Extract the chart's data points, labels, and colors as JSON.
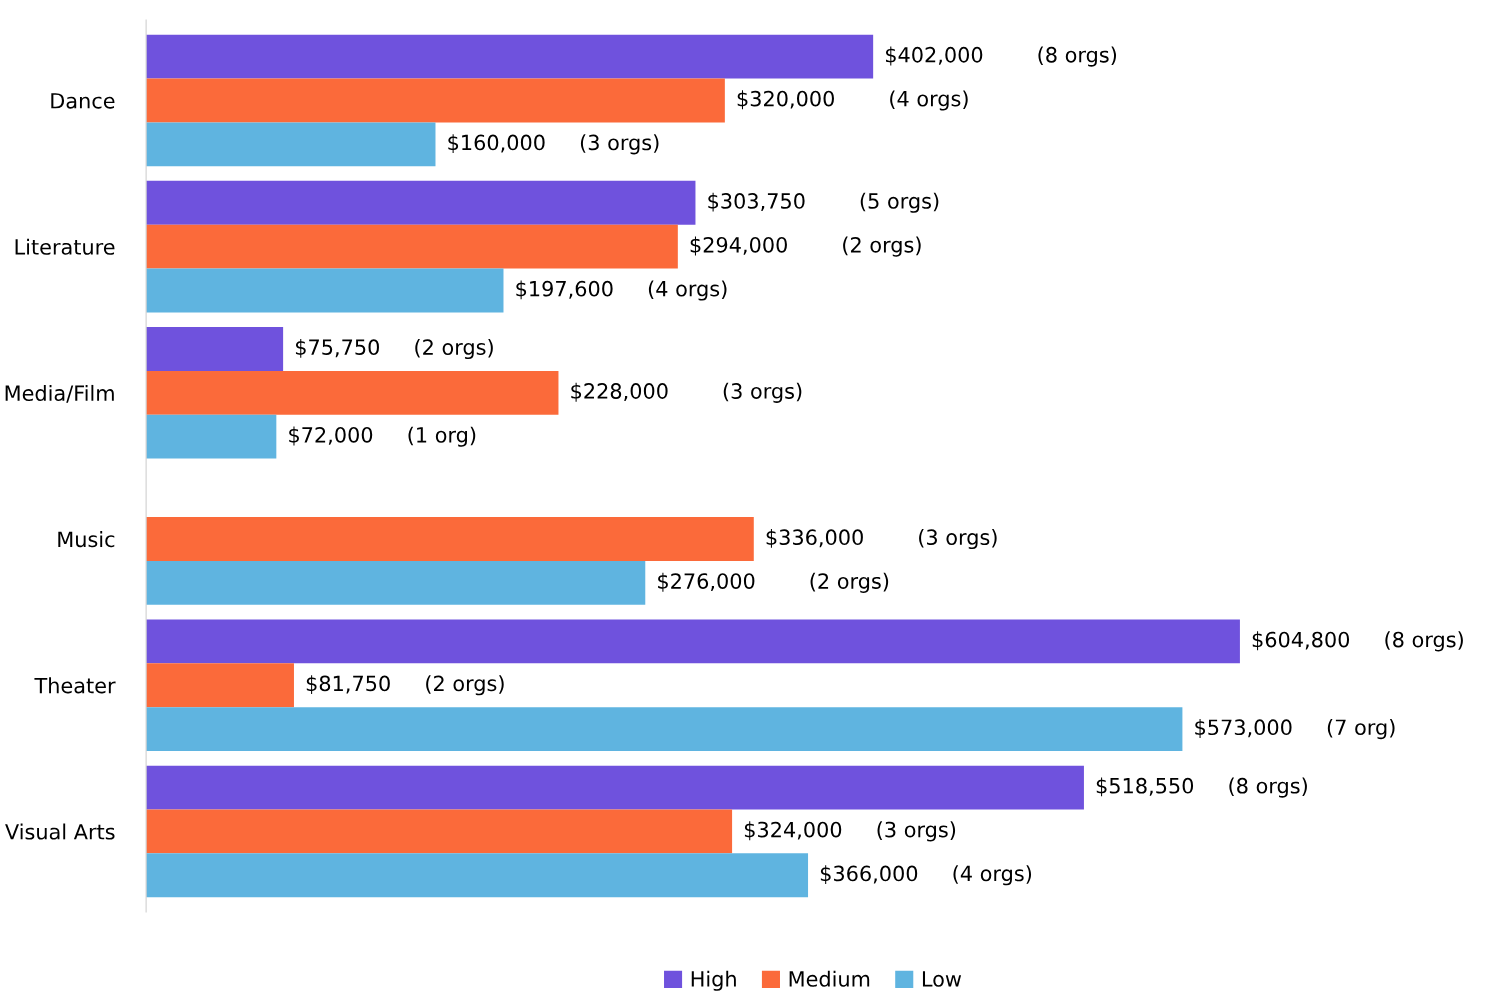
{
  "chart_data": {
    "type": "bar",
    "orientation": "horizontal",
    "categories": [
      "Dance",
      "Literature",
      "Media/Film",
      "Music",
      "Theater",
      "Visual Arts"
    ],
    "series": [
      {
        "name": "High",
        "color": "#6f52dd",
        "values": [
          402000,
          303750,
          75750,
          null,
          604800,
          518550
        ],
        "value_labels": [
          "$402,000        (8 orgs)",
          "$303,750        (5 orgs)",
          "$75,750     (2 orgs)",
          null,
          "$604,800     (8 orgs)",
          "$518,550     (8 orgs)"
        ]
      },
      {
        "name": "Medium",
        "color": "#fb6a3a",
        "values": [
          320000,
          294000,
          228000,
          336000,
          81750,
          324000
        ],
        "value_labels": [
          "$320,000        (4 orgs)",
          "$294,000        (2 orgs)",
          "$228,000        (3 orgs)",
          "$336,000        (3 orgs)",
          "$81,750     (2 orgs)",
          "$324,000     (3 orgs)"
        ]
      },
      {
        "name": "Low",
        "color": "#5fb4e0",
        "values": [
          160000,
          197600,
          72000,
          276000,
          573000,
          366000
        ],
        "value_labels": [
          "$160,000     (3 orgs)",
          "$197,600     (4 orgs)",
          "$72,000     (1 org)",
          "$276,000        (2 orgs)",
          "$573,000     (7 org)",
          "$366,000     (4 orgs)"
        ]
      }
    ],
    "legend": "bottom",
    "grid": false
  }
}
